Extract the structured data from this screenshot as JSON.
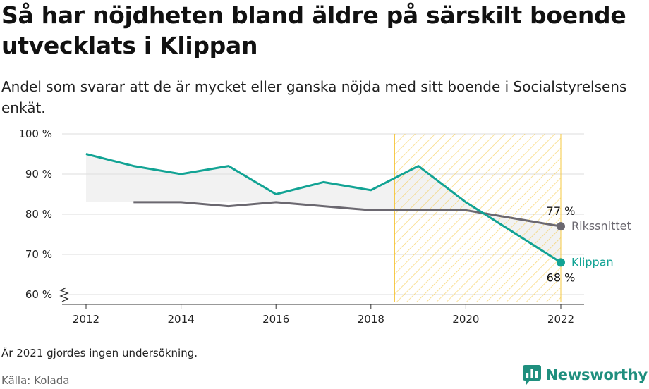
{
  "header": {
    "title": "Så har nöjdheten bland äldre på särskilt boende utvecklats i Klippan",
    "subtitle": "Andel som svarar att de är mycket eller ganska nöjda med sitt boende i Socialstyrelsens enkät."
  },
  "footer": {
    "note": "År 2021 gjordes ingen undersökning.",
    "source": "Källa: Kolada",
    "brand": "Newsworthy"
  },
  "colors": {
    "klippan": "#12a394",
    "riks": "#6b6870",
    "hatch": "#f5c842",
    "band": "#f2f2f2",
    "grid": "#dedede",
    "brand": "#1f8f7e"
  },
  "chart_data": {
    "type": "line",
    "x_ticks": [
      2012,
      2014,
      2016,
      2018,
      2020,
      2022
    ],
    "y_ticks": [
      "100 %",
      "90 %",
      "80 %",
      "70 %",
      "60 %"
    ],
    "y_tick_values": [
      100,
      90,
      80,
      70,
      60
    ],
    "xlim": [
      2011.5,
      2022.5
    ],
    "ylim": [
      60,
      100
    ],
    "grid": true,
    "highlight_range": [
      2018.5,
      2022
    ],
    "series": [
      {
        "name": "Klippan",
        "x": [
          2012,
          2013,
          2014,
          2015,
          2016,
          2017,
          2018,
          2019,
          2020,
          2022
        ],
        "values": [
          95,
          92,
          90,
          92,
          85,
          88,
          86,
          92,
          83,
          68
        ],
        "end_label": "68 %"
      },
      {
        "name": "Rikssnittet",
        "x": [
          2013,
          2014,
          2015,
          2016,
          2017,
          2018,
          2019,
          2020,
          2022
        ],
        "values": [
          83,
          83,
          82,
          83,
          82,
          81,
          81,
          81,
          77
        ],
        "end_label": "77 %"
      }
    ]
  }
}
